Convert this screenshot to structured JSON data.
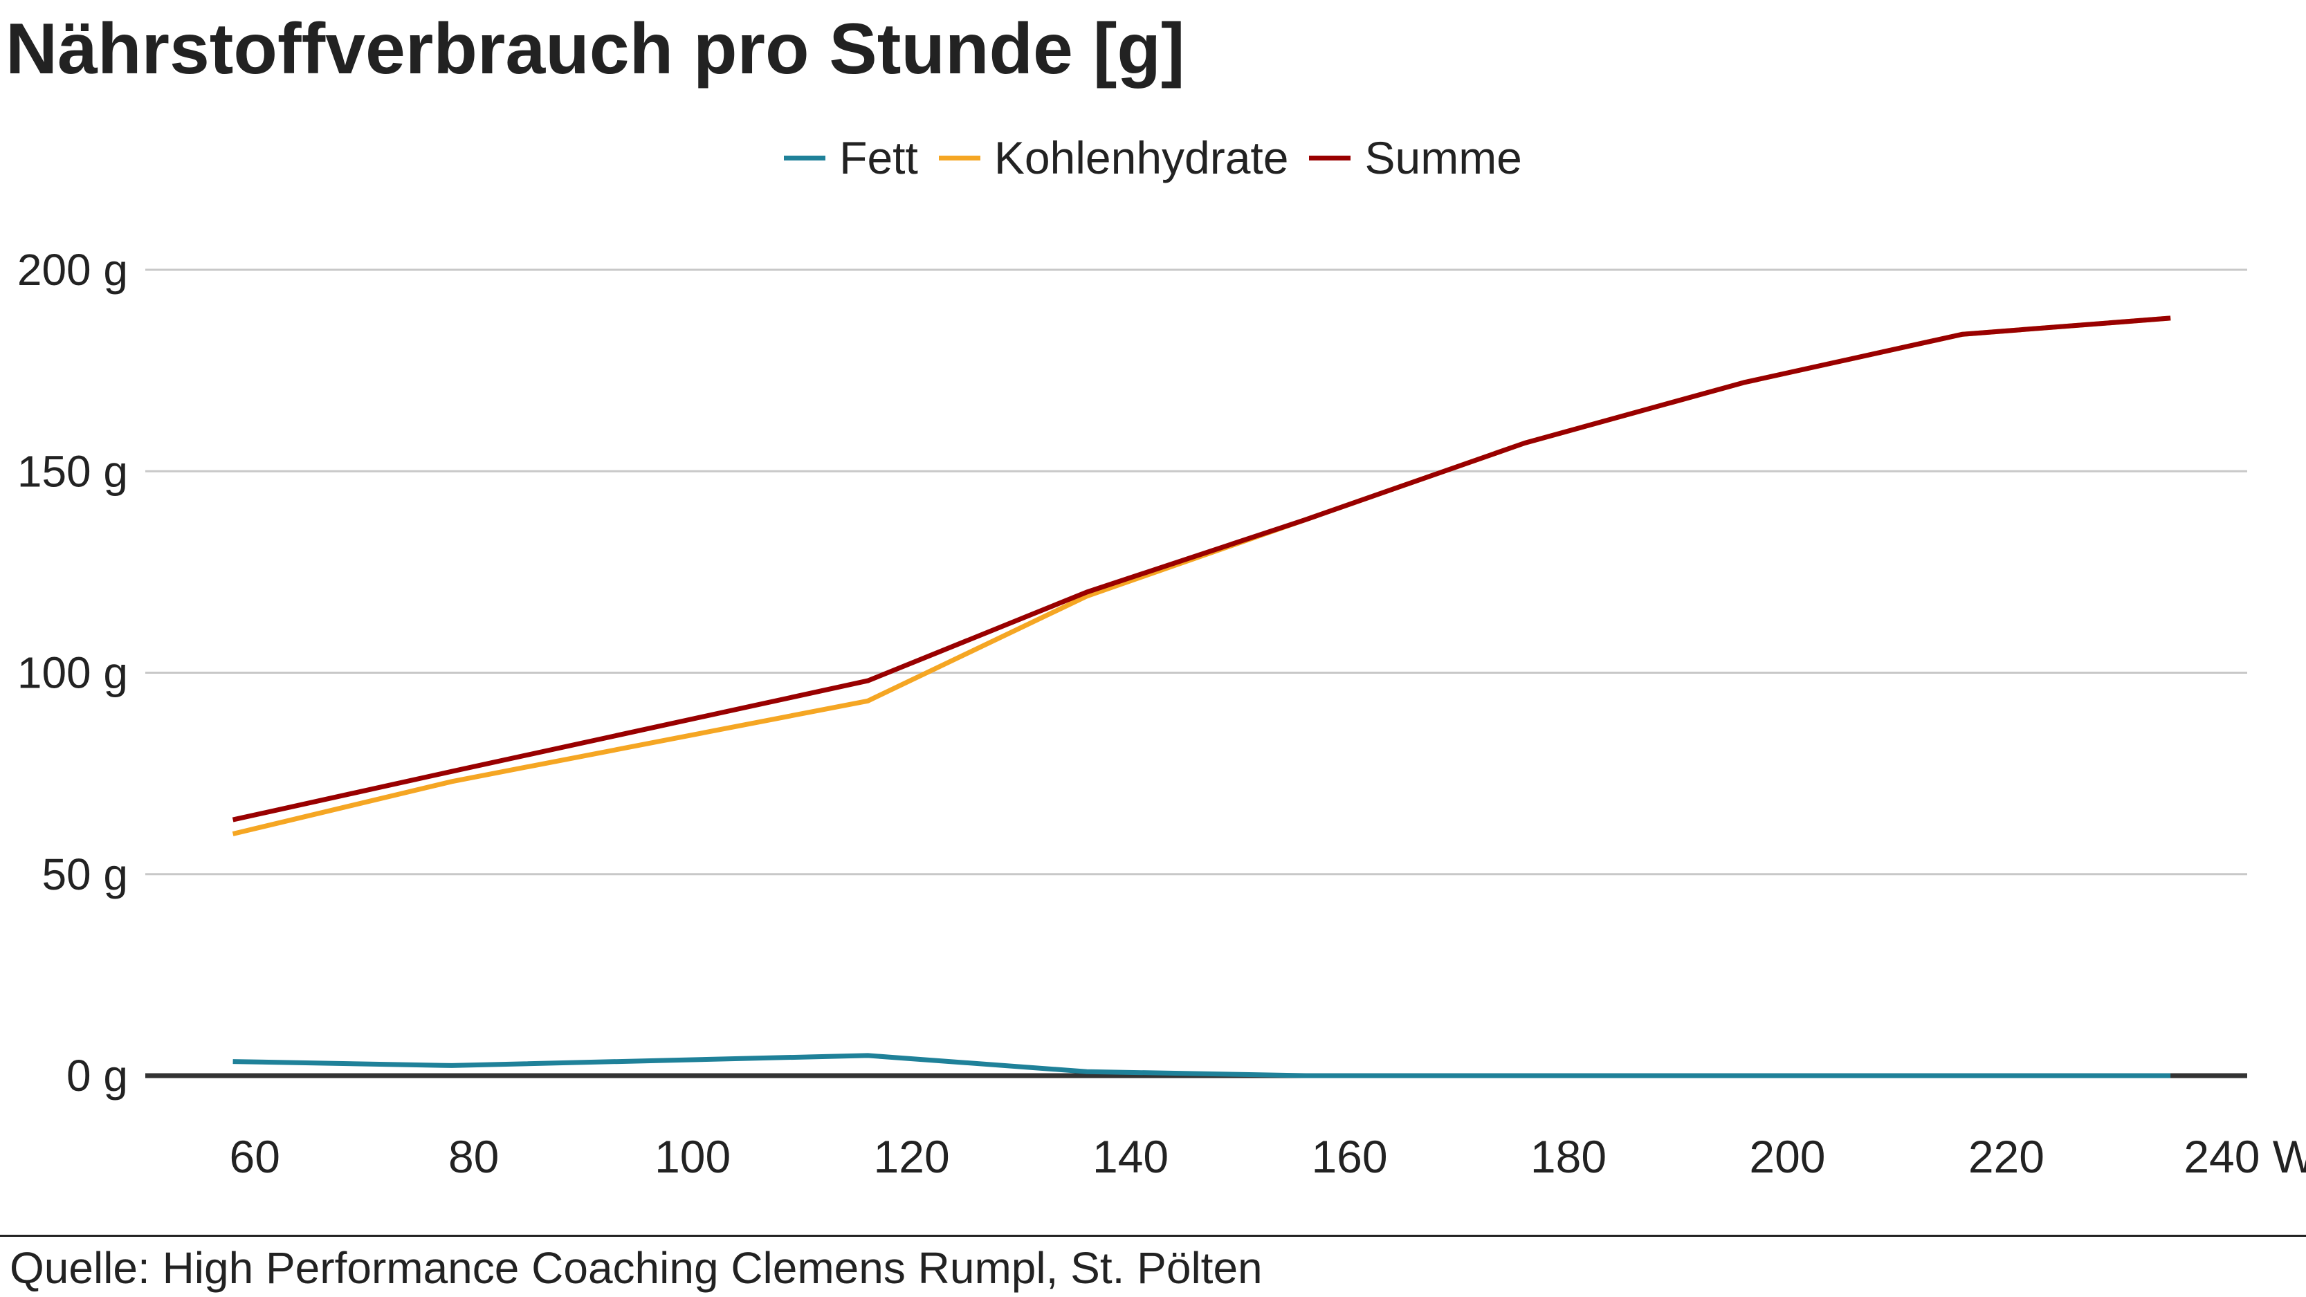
{
  "title": "Nährstoffverbrauch pro Stunde [g]",
  "source": "Quelle: High Performance Coaching Clemens Rumpl, St. Pölten",
  "chart_data": {
    "type": "line",
    "x": [
      58,
      78,
      116,
      136,
      156,
      176,
      196,
      216,
      235
    ],
    "xticks": [
      60,
      80,
      100,
      120,
      140,
      160,
      180,
      200,
      220,
      240
    ],
    "xtick_labels": [
      "60",
      "80",
      "100",
      "120",
      "140",
      "160",
      "180",
      "200",
      "220",
      "240 W"
    ],
    "yticks": [
      0,
      50,
      100,
      150,
      200
    ],
    "ytick_labels": [
      "0 g",
      "50 g",
      "100 g",
      "150 g",
      "200 g"
    ],
    "xlim": [
      50,
      242
    ],
    "ylim": [
      0,
      200
    ],
    "grid": true,
    "legend_position": "top-center",
    "series": [
      {
        "name": "Fett",
        "color": "#1f8199",
        "values": [
          3.5,
          2.5,
          5,
          1,
          0,
          0,
          0,
          0,
          0
        ]
      },
      {
        "name": "Kohlenhydrate",
        "color": "#f5a623",
        "values": [
          60,
          73,
          93,
          119,
          138,
          157,
          172,
          184,
          188
        ]
      },
      {
        "name": "Summe",
        "color": "#990000",
        "values": [
          63.5,
          75.5,
          98,
          120,
          138,
          157,
          172,
          184,
          188
        ]
      }
    ]
  }
}
